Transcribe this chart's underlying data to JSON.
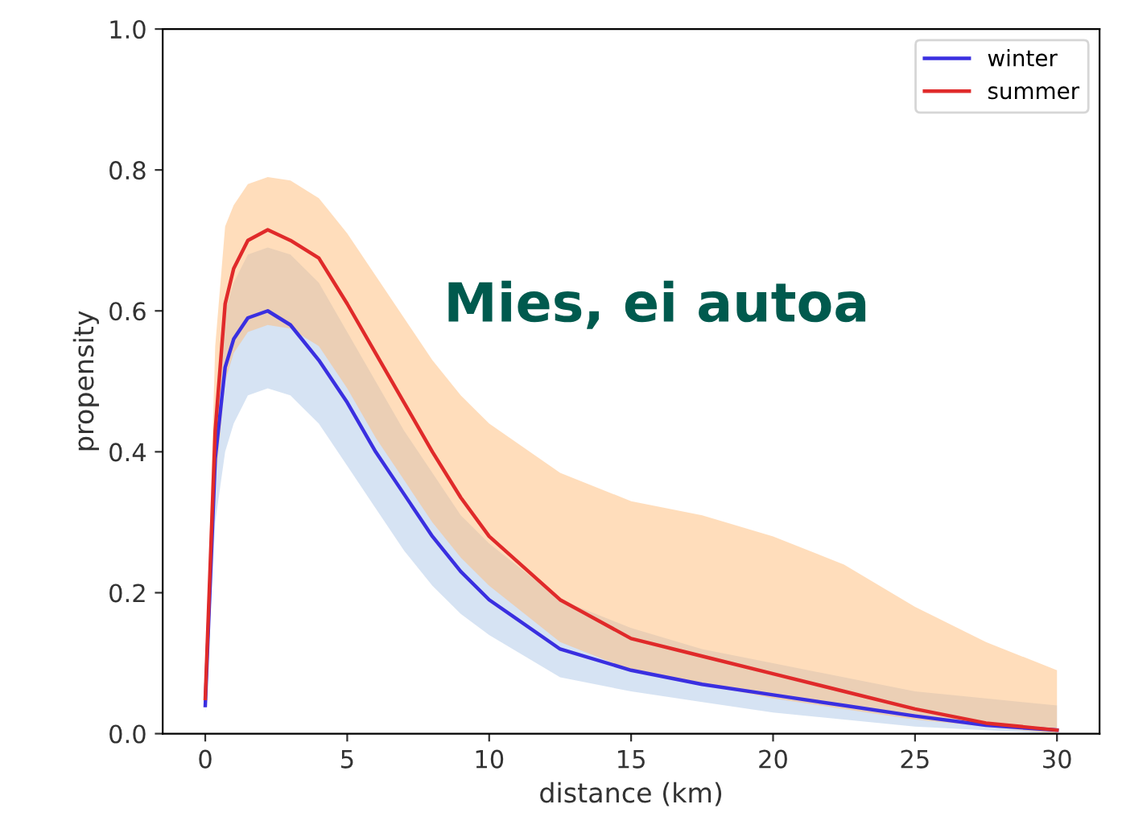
{
  "chart_data": {
    "type": "line",
    "title": "Mies, ei autoa",
    "xlabel": "distance (km)",
    "ylabel": "propensity",
    "x": [
      0,
      0.35,
      0.7,
      1,
      1.5,
      2.2,
      3,
      4,
      5,
      6,
      7,
      8,
      9,
      10,
      12.5,
      15,
      17.5,
      20,
      22.5,
      25,
      27.5,
      30
    ],
    "series": [
      {
        "name": "winter",
        "color": "#3a2fe0",
        "values": [
          0.04,
          0.39,
          0.52,
          0.56,
          0.59,
          0.6,
          0.58,
          0.53,
          0.47,
          0.4,
          0.34,
          0.28,
          0.23,
          0.19,
          0.12,
          0.09,
          0.07,
          0.055,
          0.04,
          0.025,
          0.012,
          0.005
        ],
        "upper": [
          0.05,
          0.45,
          0.6,
          0.64,
          0.68,
          0.69,
          0.68,
          0.64,
          0.57,
          0.5,
          0.43,
          0.37,
          0.31,
          0.27,
          0.19,
          0.15,
          0.12,
          0.1,
          0.08,
          0.06,
          0.05,
          0.04
        ],
        "lower": [
          0.03,
          0.3,
          0.4,
          0.44,
          0.48,
          0.49,
          0.48,
          0.44,
          0.38,
          0.32,
          0.26,
          0.21,
          0.17,
          0.14,
          0.08,
          0.06,
          0.045,
          0.03,
          0.02,
          0.01,
          0.005,
          0.0
        ]
      },
      {
        "name": "summer",
        "color": "#e02a2a",
        "values": [
          0.05,
          0.43,
          0.61,
          0.66,
          0.7,
          0.715,
          0.7,
          0.675,
          0.61,
          0.54,
          0.47,
          0.4,
          0.335,
          0.28,
          0.19,
          0.135,
          0.11,
          0.085,
          0.06,
          0.035,
          0.015,
          0.005
        ],
        "upper": [
          0.06,
          0.55,
          0.72,
          0.75,
          0.78,
          0.79,
          0.785,
          0.76,
          0.71,
          0.65,
          0.59,
          0.53,
          0.48,
          0.44,
          0.37,
          0.33,
          0.31,
          0.28,
          0.24,
          0.18,
          0.13,
          0.09
        ],
        "lower": [
          0.04,
          0.35,
          0.5,
          0.54,
          0.57,
          0.58,
          0.575,
          0.55,
          0.49,
          0.42,
          0.36,
          0.3,
          0.25,
          0.21,
          0.13,
          0.09,
          0.07,
          0.05,
          0.035,
          0.02,
          0.01,
          0.0
        ]
      }
    ],
    "xlim": [
      -1.5,
      31.5
    ],
    "xticks": [
      0,
      5,
      10,
      15,
      20,
      25,
      30
    ],
    "ylim": [
      0.0,
      1.0
    ],
    "yticks": [
      {
        "value": 0,
        "label": "0.0"
      },
      0.2,
      0.4,
      0.6,
      0.8,
      {
        "value": 1,
        "label": "1.0"
      }
    ],
    "legend": "top right",
    "grid": false,
    "marker": "none",
    "line_style": "solid"
  }
}
